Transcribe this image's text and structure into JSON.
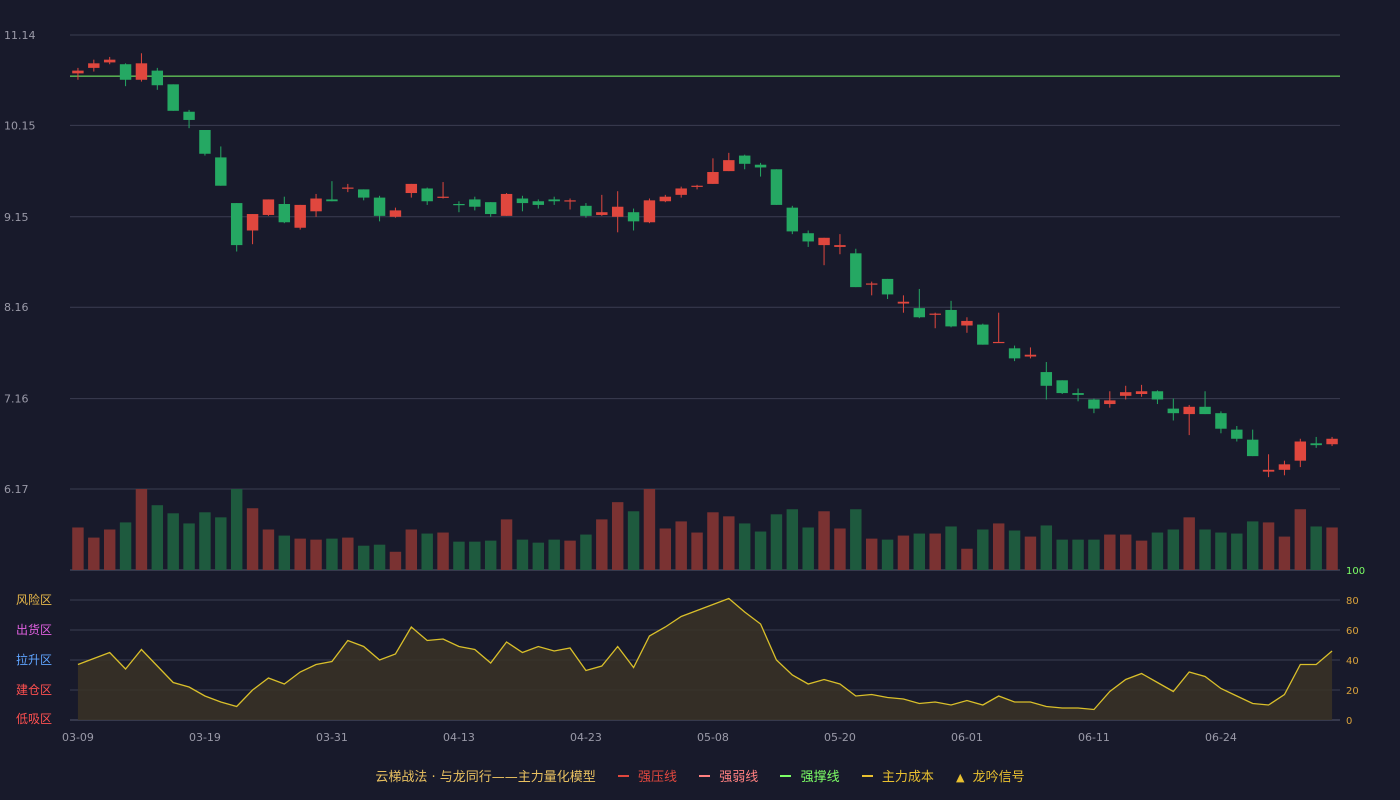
{
  "chart_data": {
    "type": "candlestick+bar+line",
    "colors": {
      "up": "#e0473e",
      "down": "#25a863",
      "vol_up": "#7a3232",
      "vol_down": "#1e5a3e",
      "support_line": "#7cff66",
      "model_line": "#d9bf2a",
      "model_fill": "#3a3326",
      "grid": "#3a3d52",
      "axis_text": "#9a9aa8",
      "osc_axis_text": "#d9a13a",
      "osc_top_text": "#7cff66"
    },
    "price_axis": {
      "ticks": [
        "11.14",
        "10.15",
        "9.15",
        "8.16",
        "7.16",
        "6.17"
      ],
      "min": 6.17,
      "max": 11.14
    },
    "support_level": 10.69,
    "x_labels": [
      "03-09",
      "03-19",
      "03-31",
      "04-13",
      "04-23",
      "05-08",
      "05-20",
      "06-01",
      "06-11",
      "06-24"
    ],
    "x_label_index": [
      0,
      8,
      16,
      24,
      32,
      40,
      48,
      56,
      64,
      72
    ],
    "candles": [
      [
        10.72,
        10.75,
        10.78,
        10.65
      ],
      [
        10.78,
        10.83,
        10.87,
        10.74
      ],
      [
        10.84,
        10.87,
        10.9,
        10.82
      ],
      [
        10.82,
        10.65,
        10.83,
        10.58
      ],
      [
        10.65,
        10.83,
        10.94,
        10.63
      ],
      [
        10.75,
        10.59,
        10.78,
        10.54
      ],
      [
        10.6,
        10.31,
        10.6,
        10.31
      ],
      [
        10.3,
        10.21,
        10.32,
        10.12
      ],
      [
        10.1,
        9.84,
        10.1,
        9.82
      ],
      [
        9.8,
        9.49,
        9.92,
        9.49
      ],
      [
        9.3,
        8.84,
        9.3,
        8.77
      ],
      [
        9.0,
        9.18,
        9.18,
        8.85
      ],
      [
        9.17,
        9.34,
        9.34,
        9.16
      ],
      [
        9.29,
        9.09,
        9.37,
        9.08
      ],
      [
        9.03,
        9.28,
        9.28,
        9.01
      ],
      [
        9.21,
        9.35,
        9.4,
        9.15
      ],
      [
        9.34,
        9.32,
        9.54,
        9.32
      ],
      [
        9.47,
        9.47,
        9.51,
        9.42
      ],
      [
        9.45,
        9.36,
        9.45,
        9.33
      ],
      [
        9.36,
        9.16,
        9.38,
        9.1
      ],
      [
        9.15,
        9.22,
        9.25,
        9.14
      ],
      [
        9.41,
        9.51,
        9.51,
        9.36
      ],
      [
        9.46,
        9.32,
        9.47,
        9.28
      ],
      [
        9.37,
        9.37,
        9.53,
        9.35
      ],
      [
        9.29,
        9.28,
        9.32,
        9.2
      ],
      [
        9.34,
        9.26,
        9.37,
        9.22
      ],
      [
        9.31,
        9.18,
        9.31,
        9.15
      ],
      [
        9.16,
        9.4,
        9.41,
        9.16
      ],
      [
        9.35,
        9.3,
        9.38,
        9.21
      ],
      [
        9.32,
        9.28,
        9.34,
        9.24
      ],
      [
        9.34,
        9.32,
        9.37,
        9.28
      ],
      [
        9.33,
        9.33,
        9.35,
        9.23
      ],
      [
        9.27,
        9.16,
        9.3,
        9.14
      ],
      [
        9.17,
        9.2,
        9.39,
        9.16
      ],
      [
        9.15,
        9.26,
        9.43,
        8.98
      ],
      [
        9.2,
        9.1,
        9.24,
        9.0
      ],
      [
        9.09,
        9.33,
        9.35,
        9.08
      ],
      [
        9.32,
        9.37,
        9.39,
        9.31
      ],
      [
        9.39,
        9.46,
        9.48,
        9.36
      ],
      [
        9.48,
        9.49,
        9.5,
        9.45
      ],
      [
        9.51,
        9.64,
        9.79,
        9.51
      ],
      [
        9.65,
        9.77,
        9.85,
        9.65
      ],
      [
        9.82,
        9.73,
        9.83,
        9.67
      ],
      [
        9.72,
        9.69,
        9.74,
        9.59
      ],
      [
        9.67,
        9.28,
        9.67,
        9.28
      ],
      [
        9.25,
        8.99,
        9.27,
        8.96
      ],
      [
        8.97,
        8.88,
        9.0,
        8.82
      ],
      [
        8.84,
        8.92,
        8.92,
        8.62
      ],
      [
        8.82,
        8.84,
        8.96,
        8.74
      ],
      [
        8.75,
        8.38,
        8.8,
        8.38
      ],
      [
        8.41,
        8.42,
        8.44,
        8.29
      ],
      [
        8.47,
        8.3,
        8.47,
        8.25
      ],
      [
        8.2,
        8.22,
        8.29,
        8.1
      ],
      [
        8.15,
        8.05,
        8.36,
        8.04
      ],
      [
        8.08,
        8.09,
        8.1,
        7.93
      ],
      [
        8.13,
        7.95,
        8.23,
        7.94
      ],
      [
        7.96,
        8.01,
        8.05,
        7.88
      ],
      [
        7.97,
        7.75,
        7.98,
        7.75
      ],
      [
        7.77,
        7.78,
        8.1,
        7.77
      ],
      [
        7.71,
        7.6,
        7.74,
        7.57
      ],
      [
        7.62,
        7.64,
        7.72,
        7.6
      ],
      [
        7.45,
        7.3,
        7.56,
        7.15
      ],
      [
        7.36,
        7.22,
        7.36,
        7.21
      ],
      [
        7.22,
        7.2,
        7.27,
        7.13
      ],
      [
        7.15,
        7.05,
        7.16,
        7.0
      ],
      [
        7.1,
        7.14,
        7.24,
        7.06
      ],
      [
        7.19,
        7.23,
        7.3,
        7.15
      ],
      [
        7.21,
        7.24,
        7.31,
        7.18
      ],
      [
        7.24,
        7.15,
        7.25,
        7.1
      ],
      [
        7.05,
        7.0,
        7.16,
        6.92
      ],
      [
        6.99,
        7.07,
        7.09,
        6.76
      ],
      [
        7.07,
        6.99,
        7.24,
        6.99
      ],
      [
        7.0,
        6.83,
        7.02,
        6.78
      ],
      [
        6.82,
        6.72,
        6.86,
        6.69
      ],
      [
        6.71,
        6.53,
        6.82,
        6.53
      ],
      [
        6.36,
        6.38,
        6.55,
        6.3
      ],
      [
        6.38,
        6.44,
        6.48,
        6.32
      ],
      [
        6.48,
        6.69,
        6.72,
        6.41
      ],
      [
        6.67,
        6.65,
        6.74,
        6.62
      ],
      [
        6.66,
        6.72,
        6.74,
        6.64
      ]
    ],
    "volume": [
      42,
      32,
      40,
      47,
      80,
      64,
      56,
      46,
      57,
      52,
      80,
      61,
      40,
      34,
      31,
      30,
      31,
      32,
      24,
      25,
      18,
      40,
      36,
      37,
      28,
      28,
      29,
      50,
      30,
      27,
      30,
      29,
      35,
      50,
      67,
      58,
      80,
      41,
      48,
      37,
      57,
      53,
      46,
      38,
      55,
      60,
      42,
      58,
      41,
      60,
      31,
      30,
      34,
      36,
      36,
      43,
      21,
      40,
      46,
      39,
      33,
      44,
      30,
      30,
      30,
      35,
      35,
      29,
      37,
      40,
      52,
      40,
      37,
      36,
      48,
      47,
      33,
      60,
      43,
      42
    ],
    "osc_axis": {
      "ticks": [
        0,
        20,
        40,
        60,
        80,
        100
      ],
      "max": 100
    },
    "zones": [
      "风险区",
      "出货区",
      "拉升区",
      "建仓区",
      "低吸区"
    ],
    "zone_colors": [
      "#e8b84a",
      "#e060e0",
      "#5fa4ff",
      "#ff5050",
      "#ff5050"
    ],
    "oscillator": [
      37,
      41,
      45,
      34,
      47,
      36,
      25,
      22,
      16,
      12,
      9,
      20,
      28,
      24,
      32,
      37,
      39,
      53,
      49,
      40,
      44,
      62,
      53,
      54,
      49,
      47,
      38,
      52,
      45,
      49,
      46,
      48,
      33,
      36,
      49,
      35,
      56,
      62,
      69,
      73,
      77,
      81,
      72,
      64,
      40,
      30,
      24,
      27,
      24,
      16,
      17,
      15,
      14,
      11,
      12,
      10,
      13,
      10,
      16,
      12,
      12,
      9,
      8,
      8,
      7,
      19,
      27,
      31,
      25,
      19,
      32,
      29,
      21,
      16,
      11,
      10,
      17,
      37,
      37,
      46
    ],
    "legend": [
      {
        "label": "云梯战法 · 与龙同行——主力量化模型",
        "kind": "text"
      },
      {
        "label": "强压线",
        "kind": "line",
        "color": "#e0473e",
        "dash": false
      },
      {
        "label": "强弱线",
        "kind": "line",
        "color": "#ff8080",
        "dash": true
      },
      {
        "label": "强撑线",
        "kind": "line",
        "color": "#7cff66",
        "dash": false
      },
      {
        "label": "主力成本",
        "kind": "line",
        "color": "#e8c030",
        "dash": true
      },
      {
        "label": "龙吟信号",
        "kind": "triangle",
        "color": "#e8c030"
      }
    ]
  }
}
